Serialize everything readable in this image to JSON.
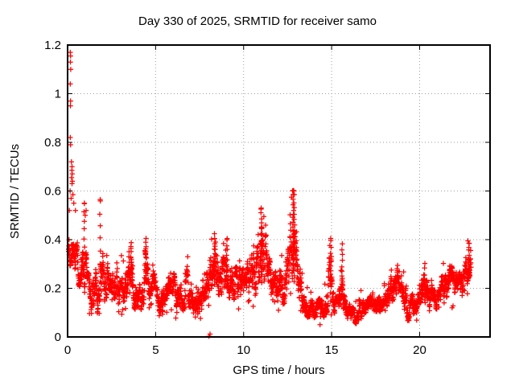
{
  "title": "Day 330 of 2025, SRMTID for receiver samo",
  "colors": {
    "background": "#ffffff",
    "marker": "#ff0000",
    "axis": "#000000",
    "grid": "#9e9e9e",
    "text": "#000000"
  },
  "chart_data": {
    "type": "scatter",
    "title": "Day 330 of 2025, SRMTID for receiver samo",
    "xlabel": "GPS time / hours",
    "ylabel": "SRMTID / TECUs",
    "xlim": [
      0,
      24
    ],
    "ylim": [
      0,
      1.2
    ],
    "xticks": [
      0,
      5,
      10,
      15,
      20
    ],
    "yticks": [
      0,
      0.2,
      0.4,
      0.6,
      0.8,
      1,
      1.2
    ],
    "grid": true,
    "legend": false,
    "marker_style": "plus",
    "sample_interval_hours": 0.008333,
    "time_range_hours": [
      0.05,
      22.92
    ],
    "envelope_t_lo_hi": [
      [
        0.0,
        0.3,
        0.5
      ],
      [
        0.3,
        0.27,
        0.45
      ],
      [
        0.6,
        0.2,
        0.38
      ],
      [
        0.9,
        0.18,
        0.42
      ],
      [
        1.2,
        0.12,
        0.28
      ],
      [
        1.5,
        0.08,
        0.25
      ],
      [
        1.75,
        0.08,
        0.3
      ],
      [
        2.0,
        0.15,
        0.35
      ],
      [
        2.3,
        0.12,
        0.3
      ],
      [
        2.5,
        0.06,
        0.25
      ],
      [
        2.7,
        0.13,
        0.32
      ],
      [
        3.0,
        0.12,
        0.3
      ],
      [
        3.3,
        0.14,
        0.3
      ],
      [
        3.6,
        0.18,
        0.39
      ],
      [
        3.9,
        0.08,
        0.22
      ],
      [
        4.1,
        0.1,
        0.26
      ],
      [
        4.4,
        0.15,
        0.41
      ],
      [
        4.7,
        0.12,
        0.3
      ],
      [
        5.0,
        0.13,
        0.28
      ],
      [
        5.3,
        0.07,
        0.2
      ],
      [
        5.6,
        0.12,
        0.28
      ],
      [
        5.9,
        0.12,
        0.3
      ],
      [
        6.2,
        0.1,
        0.26
      ],
      [
        6.5,
        0.1,
        0.24
      ],
      [
        6.8,
        0.13,
        0.32
      ],
      [
        7.1,
        0.07,
        0.22
      ],
      [
        7.35,
        0.05,
        0.2
      ],
      [
        7.6,
        0.1,
        0.26
      ],
      [
        8.0,
        0.14,
        0.33
      ],
      [
        8.4,
        0.18,
        0.42
      ],
      [
        8.7,
        0.15,
        0.35
      ],
      [
        9.0,
        0.16,
        0.38
      ],
      [
        9.3,
        0.15,
        0.33
      ],
      [
        9.6,
        0.12,
        0.28
      ],
      [
        10.0,
        0.15,
        0.3
      ],
      [
        10.4,
        0.15,
        0.33
      ],
      [
        10.8,
        0.18,
        0.45
      ],
      [
        11.0,
        0.2,
        0.53
      ],
      [
        11.2,
        0.18,
        0.45
      ],
      [
        11.5,
        0.15,
        0.32
      ],
      [
        11.8,
        0.15,
        0.33
      ],
      [
        12.1,
        0.12,
        0.28
      ],
      [
        12.4,
        0.15,
        0.35
      ],
      [
        12.7,
        0.22,
        0.55
      ],
      [
        12.9,
        0.25,
        0.6
      ],
      [
        13.1,
        0.15,
        0.4
      ],
      [
        13.4,
        0.08,
        0.18
      ],
      [
        13.8,
        0.08,
        0.16
      ],
      [
        14.2,
        0.08,
        0.16
      ],
      [
        14.6,
        0.08,
        0.18
      ],
      [
        14.95,
        0.12,
        0.4
      ],
      [
        15.1,
        0.08,
        0.18
      ],
      [
        15.35,
        0.08,
        0.16
      ],
      [
        15.6,
        0.15,
        0.38
      ],
      [
        15.8,
        0.06,
        0.15
      ],
      [
        16.2,
        0.04,
        0.13
      ],
      [
        16.6,
        0.06,
        0.15
      ],
      [
        17.0,
        0.08,
        0.16
      ],
      [
        17.4,
        0.08,
        0.18
      ],
      [
        17.8,
        0.1,
        0.2
      ],
      [
        18.2,
        0.1,
        0.22
      ],
      [
        18.6,
        0.14,
        0.3
      ],
      [
        19.0,
        0.12,
        0.26
      ],
      [
        19.4,
        0.06,
        0.18
      ],
      [
        19.8,
        0.1,
        0.22
      ],
      [
        20.2,
        0.12,
        0.28
      ],
      [
        20.6,
        0.1,
        0.22
      ],
      [
        21.0,
        0.1,
        0.22
      ],
      [
        21.4,
        0.13,
        0.28
      ],
      [
        21.8,
        0.15,
        0.3
      ],
      [
        22.2,
        0.12,
        0.26
      ],
      [
        22.5,
        0.13,
        0.28
      ],
      [
        22.75,
        0.18,
        0.38
      ],
      [
        22.92,
        0.22,
        0.38
      ]
    ],
    "outlier_points": [
      [
        0.15,
        1.17
      ],
      [
        0.17,
        1.155
      ],
      [
        0.16,
        1.13
      ],
      [
        0.18,
        1.1
      ],
      [
        0.15,
        1.04
      ],
      [
        0.17,
        0.97
      ],
      [
        0.16,
        0.95
      ],
      [
        0.15,
        0.82
      ],
      [
        0.17,
        0.79
      ],
      [
        0.22,
        0.72
      ],
      [
        0.25,
        0.7
      ],
      [
        0.24,
        0.685
      ],
      [
        0.26,
        0.67
      ],
      [
        0.23,
        0.655
      ],
      [
        0.27,
        0.64
      ],
      [
        0.25,
        0.63
      ],
      [
        0.14,
        0.6
      ],
      [
        0.3,
        0.585
      ],
      [
        0.2,
        0.57
      ],
      [
        0.35,
        0.55
      ],
      [
        0.1,
        0.52
      ],
      [
        0.45,
        0.52
      ],
      [
        0.95,
        0.55
      ],
      [
        1.05,
        0.52
      ],
      [
        1.0,
        0.5
      ],
      [
        1.85,
        0.565
      ],
      [
        11.0,
        0.53
      ],
      [
        12.85,
        0.6
      ],
      [
        12.88,
        0.585
      ],
      [
        14.95,
        0.405
      ],
      [
        22.8,
        0.385
      ]
    ],
    "spike_columns_t_lo_hi_n": [
      [
        0.95,
        0.3,
        0.55,
        8
      ],
      [
        1.85,
        0.3,
        0.56,
        6
      ],
      [
        3.6,
        0.22,
        0.39,
        10
      ],
      [
        4.45,
        0.22,
        0.41,
        12
      ],
      [
        8.35,
        0.22,
        0.42,
        12
      ],
      [
        9.05,
        0.25,
        0.4,
        8
      ],
      [
        11.0,
        0.25,
        0.53,
        14
      ],
      [
        11.05,
        0.22,
        0.45,
        8
      ],
      [
        12.82,
        0.28,
        0.6,
        18
      ],
      [
        12.88,
        0.25,
        0.55,
        14
      ],
      [
        14.95,
        0.15,
        0.4,
        10
      ],
      [
        15.6,
        0.18,
        0.38,
        10
      ],
      [
        20.3,
        0.15,
        0.3,
        8
      ],
      [
        22.8,
        0.25,
        0.385,
        10
      ]
    ],
    "zero_points": [
      [
        8.03,
        0.003
      ],
      [
        8.09,
        0.012
      ]
    ]
  }
}
